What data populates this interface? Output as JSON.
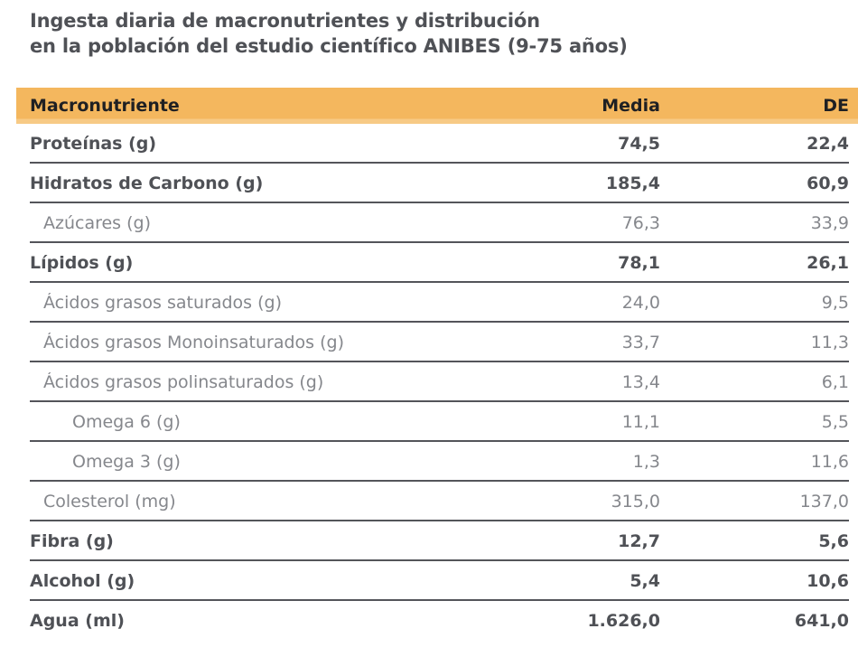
{
  "title": {
    "line1": "Ingesta diaria de macronutrientes y distribución",
    "line2": "en la población del estudio científico ANIBES (9-75 años)"
  },
  "colors": {
    "header_bg": "#f4b75e",
    "header_band": "#f7ca85",
    "header_text": "#1f2023",
    "text_dark": "#4f5156",
    "text_light": "#85878c",
    "line": "#54555a",
    "page_bg": "#ffffff"
  },
  "table": {
    "header": {
      "macronutriente": "Macronutriente",
      "media": "Media",
      "de": "DE"
    },
    "rows": [
      {
        "label": "Proteínas (g)",
        "media": "74,5",
        "de": "22,4",
        "level": 0,
        "bold": true
      },
      {
        "label": "Hidratos de Carbono (g)",
        "media": "185,4",
        "de": "60,9",
        "level": 0,
        "bold": true
      },
      {
        "label": "Azúcares (g)",
        "media": "76,3",
        "de": "33,9",
        "level": 1,
        "bold": false
      },
      {
        "label": "Lípidos (g)",
        "media": "78,1",
        "de": "26,1",
        "level": 0,
        "bold": true
      },
      {
        "label": "Ácidos grasos saturados (g)",
        "media": "24,0",
        "de": "9,5",
        "level": 1,
        "bold": false
      },
      {
        "label": "Ácidos grasos Monoinsaturados (g)",
        "media": "33,7",
        "de": "11,3",
        "level": 1,
        "bold": false
      },
      {
        "label": "Ácidos grasos polinsaturados (g)",
        "media": "13,4",
        "de": "6,1",
        "level": 1,
        "bold": false
      },
      {
        "label": "Omega 6 (g)",
        "media": "11,1",
        "de": "5,5",
        "level": 2,
        "bold": false
      },
      {
        "label": "Omega 3 (g)",
        "media": "1,3",
        "de": "11,6",
        "level": 2,
        "bold": false
      },
      {
        "label": "Colesterol (mg)",
        "media": "315,0",
        "de": "137,0",
        "level": 1,
        "bold": false
      },
      {
        "label": "Fibra (g)",
        "media": "12,7",
        "de": "5,6",
        "level": 0,
        "bold": true
      },
      {
        "label": "Alcohol (g)",
        "media": "5,4",
        "de": "10,6",
        "level": 0,
        "bold": true
      },
      {
        "label": "Agua (ml)",
        "media": "1.626,0",
        "de": "641,0",
        "level": 0,
        "bold": true
      }
    ]
  }
}
